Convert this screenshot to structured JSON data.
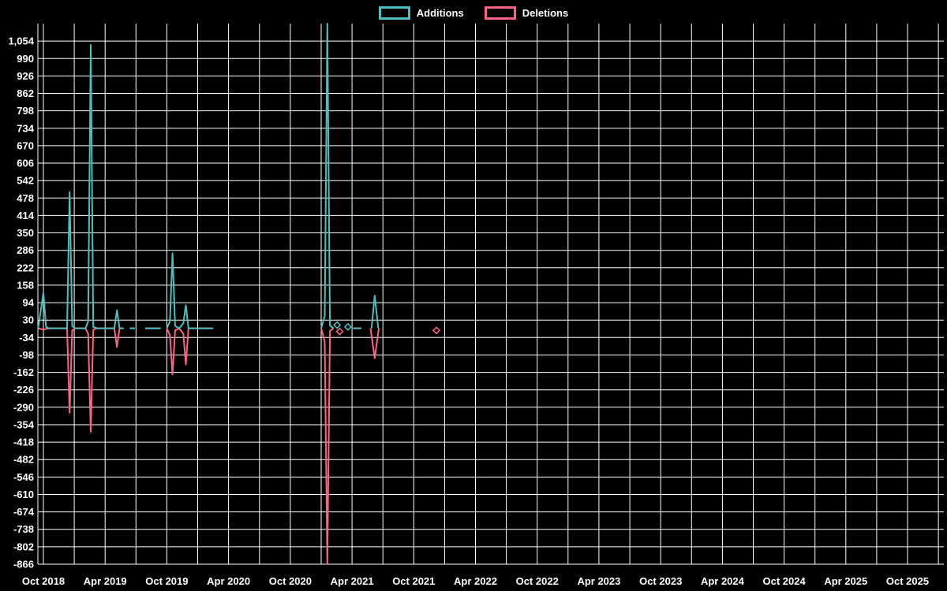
{
  "chart_data": {
    "type": "line",
    "title": "",
    "background": "#000000",
    "grid_color": "#ffffff",
    "text_color": "#ffffff",
    "legend": {
      "position": "top",
      "items": [
        "Additions",
        "Deletions"
      ]
    },
    "x_axis": {
      "unit": "months since Oct 2018 (weekly data points)",
      "labels": [
        "Oct 2018",
        "Apr 2019",
        "Oct 2019",
        "Apr 2020",
        "Oct 2020",
        "Apr 2021",
        "Oct 2021",
        "Apr 2022",
        "Oct 2022",
        "Apr 2023",
        "Oct 2023",
        "Apr 2024",
        "Oct 2024",
        "Apr 2025",
        "Oct 2025"
      ],
      "months_per_label": 6,
      "gridline_every_months": 3,
      "gridline_max_month": 87
    },
    "y_axis": {
      "min": -866,
      "max": 1118,
      "tick_step": 64,
      "tick_labels": [
        "1,054",
        "990",
        "926",
        "862",
        "798",
        "734",
        "670",
        "606",
        "542",
        "478",
        "414",
        "350",
        "286",
        "222",
        "158",
        "94",
        "30",
        "-34",
        "-98",
        "-162",
        "-226",
        "-290",
        "-354",
        "-418",
        "-482",
        "-546",
        "-610",
        "-674",
        "-738",
        "-802",
        "-866"
      ]
    },
    "series": [
      {
        "name": "Additions",
        "color": "#4bc0c0",
        "segments": [
          [
            [
              -0.5,
              2
            ],
            [
              0,
              130
            ],
            [
              0.25,
              5
            ],
            [
              0.5,
              0
            ],
            [
              1,
              0
            ],
            [
              1.5,
              0
            ],
            [
              2,
              0
            ],
            [
              2.3,
              0
            ],
            [
              2.55,
              500
            ],
            [
              2.8,
              8
            ],
            [
              3.1,
              0
            ],
            [
              3.6,
              0
            ],
            [
              4.1,
              0
            ],
            [
              4.35,
              25
            ],
            [
              4.6,
              1040
            ],
            [
              4.85,
              5
            ],
            [
              5.2,
              0
            ],
            [
              5.7,
              0
            ],
            [
              6.2,
              0
            ],
            [
              6.9,
              0
            ],
            [
              7.15,
              66
            ],
            [
              7.4,
              0
            ],
            [
              7.8,
              0
            ]
          ],
          [
            [
              8.4,
              0
            ],
            [
              8.9,
              0
            ]
          ],
          [
            [
              9.9,
              0
            ],
            [
              10.6,
              0
            ],
            [
              11.4,
              0
            ]
          ],
          [
            [
              12.0,
              0
            ],
            [
              12.3,
              25
            ],
            [
              12.55,
              275
            ],
            [
              12.8,
              8
            ],
            [
              13.2,
              0
            ],
            [
              13.6,
              18
            ],
            [
              13.85,
              85
            ],
            [
              14.1,
              0
            ],
            [
              14.6,
              0
            ],
            [
              15.2,
              0
            ],
            [
              15.8,
              0
            ],
            [
              16.5,
              0
            ]
          ],
          [
            [
              27.0,
              0
            ],
            [
              27.35,
              45
            ],
            [
              27.6,
              1118
            ],
            [
              27.85,
              10
            ],
            [
              28.2,
              0
            ]
          ],
          [
            [
              30.1,
              0
            ],
            [
              30.9,
              0
            ]
          ],
          [
            [
              31.9,
              0
            ],
            [
              32.2,
              120
            ],
            [
              32.55,
              0
            ]
          ]
        ],
        "isolated_points": [
          [
            28.55,
            12
          ],
          [
            29.6,
            5
          ]
        ]
      },
      {
        "name": "Deletions",
        "color": "#ff6384",
        "segments": [
          [
            [
              -0.5,
              0
            ],
            [
              0,
              -5
            ],
            [
              0.5,
              0
            ],
            [
              1,
              0
            ],
            [
              1.5,
              0
            ],
            [
              2,
              0
            ],
            [
              2.3,
              0
            ],
            [
              2.55,
              -310
            ],
            [
              2.8,
              -8
            ],
            [
              3.1,
              0
            ],
            [
              3.6,
              0
            ],
            [
              4.1,
              0
            ],
            [
              4.35,
              -20
            ],
            [
              4.6,
              -380
            ],
            [
              4.85,
              -5
            ],
            [
              5.2,
              0
            ],
            [
              5.7,
              0
            ],
            [
              6.2,
              0
            ],
            [
              6.9,
              0
            ],
            [
              7.15,
              -69
            ],
            [
              7.4,
              0
            ],
            [
              7.8,
              0
            ]
          ],
          [
            [
              8.4,
              0
            ],
            [
              8.9,
              0
            ]
          ],
          [
            [
              9.9,
              0
            ],
            [
              11.4,
              0
            ]
          ],
          [
            [
              12.0,
              0
            ],
            [
              12.3,
              -25
            ],
            [
              12.55,
              -170
            ],
            [
              12.8,
              -8
            ],
            [
              13.2,
              0
            ],
            [
              13.6,
              -20
            ],
            [
              13.85,
              -133
            ],
            [
              14.1,
              0
            ],
            [
              14.6,
              0
            ],
            [
              15.2,
              0
            ],
            [
              15.8,
              0
            ],
            [
              16.5,
              0
            ]
          ],
          [
            [
              27.0,
              0
            ],
            [
              27.35,
              -50
            ],
            [
              27.6,
              -866
            ],
            [
              27.85,
              -10
            ],
            [
              28.2,
              0
            ]
          ],
          [
            [
              30.1,
              0
            ],
            [
              30.9,
              0
            ]
          ],
          [
            [
              31.8,
              0
            ],
            [
              32.2,
              -110
            ],
            [
              32.6,
              0
            ]
          ]
        ],
        "isolated_points": [
          [
            28.8,
            -12
          ],
          [
            38.2,
            -8
          ]
        ]
      }
    ]
  }
}
